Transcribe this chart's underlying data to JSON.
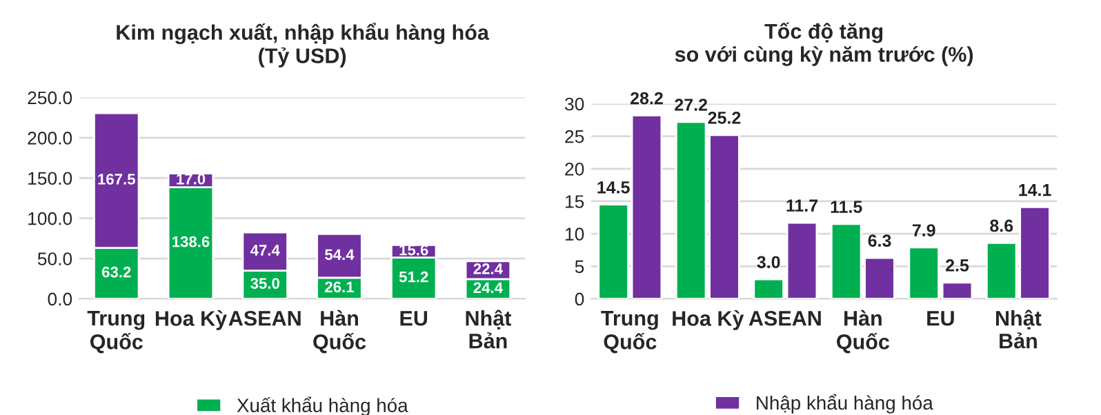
{
  "chart_data": [
    {
      "type": "bar",
      "title": "Kim ngạch xuất, nhập khẩu hàng hóa\n(Tỷ USD)",
      "categories": [
        "Trung\nQuốc",
        "Hoa Kỳ",
        "ASEAN",
        "Hàn\nQuốc",
        "EU",
        "Nhật\nBản"
      ],
      "stacked": true,
      "ylim": [
        0,
        250
      ],
      "yticks": [
        {
          "value": 0,
          "label": "0.0"
        },
        {
          "value": 50,
          "label": "50.0"
        },
        {
          "value": 100,
          "label": "100.0"
        },
        {
          "value": 150,
          "label": "150.0"
        },
        {
          "value": 200,
          "label": "200.0"
        },
        {
          "value": 250,
          "label": "250.0"
        }
      ],
      "grid": "y",
      "legend": "bottom",
      "series": [
        {
          "name": "Xuất khẩu hàng hóa",
          "color": "#00b050",
          "values": [
            63.2,
            138.6,
            35.0,
            26.1,
            51.2,
            24.4
          ],
          "value_labels": [
            "63.2",
            "138.6",
            "35.0",
            "26.1",
            "51.2",
            "24.4"
          ]
        },
        {
          "color": "#7030a0",
          "values": [
            167.5,
            17.0,
            47.4,
            54.4,
            15.6,
            22.4
          ],
          "value_labels": [
            "167.5",
            "17.0",
            "47.4",
            "54.4",
            "15.6",
            "22.4"
          ]
        }
      ]
    },
    {
      "type": "bar",
      "title": "Tốc độ tăng\nso với cùng kỳ năm trước (%)",
      "categories": [
        "Trung\nQuốc",
        "Hoa Kỳ",
        "ASEAN",
        "Hàn\nQuốc",
        "EU",
        "Nhật\nBản"
      ],
      "ylim": [
        0,
        30
      ],
      "yticks": [
        0,
        5,
        10,
        15,
        20,
        25,
        30
      ],
      "grid": "y",
      "legend": "bottom",
      "series": [
        {
          "color": "#00b050",
          "values": [
            14.5,
            27.2,
            3.0,
            11.5,
            7.9,
            8.6
          ],
          "value_labels": [
            "14.5",
            "27.2",
            "3.0",
            "11.5",
            "7.9",
            "8.6"
          ]
        },
        {
          "name": "Nhập khẩu hàng hóa",
          "color": "#7030a0",
          "values": [
            28.2,
            25.2,
            11.7,
            6.3,
            2.5,
            14.1
          ],
          "value_labels": [
            "28.2",
            "25.2",
            "11.7",
            "6.3",
            "2.5",
            "14.1"
          ]
        }
      ]
    }
  ]
}
